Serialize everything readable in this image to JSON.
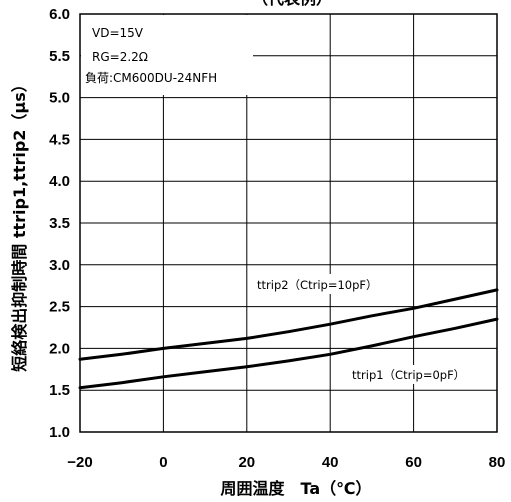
{
  "chart_data": {
    "type": "line",
    "title": "（代表例）",
    "xlabel": "周囲温度　Ta（℃）",
    "ylabel": "短絡検出抑制時間 ttrip1,ttrip2（μs）",
    "xlim": [
      -20,
      80
    ],
    "ylim": [
      1.0,
      6.0
    ],
    "x_ticks": [
      "−20",
      "0",
      "20",
      "40",
      "60",
      "80"
    ],
    "y_ticks": [
      "1.0",
      "1.5",
      "2.0",
      "2.5",
      "3.0",
      "3.5",
      "4.0",
      "4.5",
      "5.0",
      "5.5",
      "6.0"
    ],
    "grid": true,
    "conditions": [
      "VD=15V",
      "RG=2.2Ω",
      "負荷:CM600DU-24NFH"
    ],
    "series": [
      {
        "name": "ttrip2（Ctrip=10pF）",
        "x": [
          -20,
          -10,
          0,
          10,
          20,
          30,
          40,
          50,
          60,
          70,
          80
        ],
        "y": [
          1.87,
          1.93,
          2.0,
          2.06,
          2.12,
          2.2,
          2.29,
          2.39,
          2.48,
          2.59,
          2.7
        ]
      },
      {
        "name": "ttrip1（Ctrip=0pF）",
        "x": [
          -20,
          -10,
          0,
          10,
          20,
          30,
          40,
          50,
          60,
          70,
          80
        ],
        "y": [
          1.53,
          1.59,
          1.66,
          1.72,
          1.78,
          1.85,
          1.93,
          2.03,
          2.14,
          2.24,
          2.35
        ]
      }
    ]
  }
}
